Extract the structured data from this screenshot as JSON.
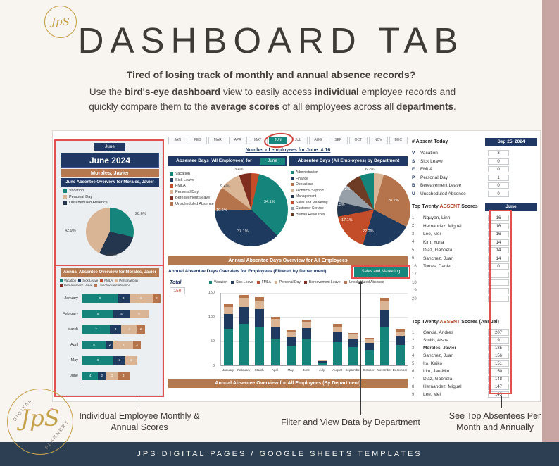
{
  "colors": {
    "navy": "#1f3864",
    "teal": "#17867d",
    "copper": "#b5794f",
    "red": "#e0514f",
    "footer": "#2d4053",
    "strip": "#c8a5a3",
    "gold": "#c5a04a",
    "ink": "#433d37"
  },
  "page": {
    "title": "DASHBOARD TAB",
    "tagline": "Tired of losing track of monthly and annual absence records?",
    "description": [
      {
        "text": "Use the ",
        "bold": false
      },
      {
        "text": "bird's-eye dashboard",
        "bold": true
      },
      {
        "text": " view to easily access ",
        "bold": false
      },
      {
        "text": "individual",
        "bold": true
      },
      {
        "text": " employee records and quickly compare them to the ",
        "bold": false
      },
      {
        "text": "average scores",
        "bold": true
      },
      {
        "text": " of all employees across all ",
        "bold": false
      },
      {
        "text": "departments",
        "bold": true
      },
      {
        "text": ".",
        "bold": false
      }
    ],
    "footer": "JPS DIGITAL PAGES / GOOGLE SHEETS TEMPLATES",
    "logo": {
      "script": "JpS",
      "arc_top": "DIGITAL",
      "arc_bottom": "PLANNERS"
    }
  },
  "annotations": {
    "left": [
      "Individual Employee Monthly &",
      "Annual Scores"
    ],
    "middle": [
      "Filter and View Data by Department"
    ],
    "right": [
      "See Top Absentees Per",
      "Month and Annually"
    ]
  },
  "sheet": {
    "month_tabs": [
      "JAN",
      "FEB",
      "MAR",
      "APR",
      "MAY",
      "JUN",
      "JUL",
      "AUG",
      "SEP",
      "OCT",
      "NOV",
      "DEC"
    ],
    "circled_tab": "JUN",
    "employee_note": "Number of employees for June:  # 16",
    "left_panel": {
      "mini_tab": "June",
      "month_header": "June 2024",
      "employee_name": "Morales, Javier",
      "overview_title": "June Absentee Overview for Morales, Javier",
      "annual_title": "Annual Absentee Overview for Morales, Javier"
    },
    "headers": {
      "all_employees_for": "Absentee Days (All Employees) for",
      "month_chip": "June",
      "by_department": "Absentee Days (All Employees) by Department",
      "annual_all": "Annual Absentee Days Overview for All Employees",
      "filtered": "Annual Absentee Days Overview for Employees (Filtered by Department)",
      "department_chip": "Sales and Marketing",
      "annual_by_dept": "Annual Absentee Overview for All Employees (By Department)",
      "total_label": "Total",
      "total_value": "150"
    },
    "absent_today": {
      "title": "# Absent Today",
      "date": "Sep 25, 2024",
      "rows": [
        {
          "code": "V",
          "label": "Vacation",
          "value": "3"
        },
        {
          "code": "S",
          "label": "Sick Leave",
          "value": "0"
        },
        {
          "code": "F",
          "label": "FMLA",
          "value": "0"
        },
        {
          "code": "P",
          "label": "Personal Day",
          "value": "1"
        },
        {
          "code": "B",
          "label": "Bereavement Leave",
          "value": "0"
        },
        {
          "code": "U",
          "label": "Unscheduled Absence",
          "value": "0"
        }
      ]
    },
    "top_month": {
      "title_pre": "Top Twenty ",
      "title_em": "ABSENT",
      "title_post": " Scores",
      "month_chip": "June",
      "rows": [
        {
          "rank": "1",
          "name": "Nguyen, Linh",
          "score": "16",
          "bold": false
        },
        {
          "rank": "2",
          "name": "Hernandez, Miguel",
          "score": "16",
          "bold": false
        },
        {
          "rank": "3",
          "name": "Lee, Mei",
          "score": "16",
          "bold": false
        },
        {
          "rank": "4",
          "name": "Kim, Yuna",
          "score": "14",
          "bold": false
        },
        {
          "rank": "5",
          "name": "Diaz, Gabriela",
          "score": "14",
          "bold": false
        },
        {
          "rank": "6",
          "name": "Sanchez, Juan",
          "score": "14",
          "bold": false
        },
        {
          "rank": "16",
          "name": "Torres, Daniel",
          "score": "0",
          "bold": false
        },
        {
          "rank": "17",
          "name": "",
          "score": "",
          "bold": false
        },
        {
          "rank": "18",
          "name": "",
          "score": "",
          "bold": false
        },
        {
          "rank": "19",
          "name": "",
          "score": "",
          "bold": false
        },
        {
          "rank": "20",
          "name": "",
          "score": "",
          "bold": false
        }
      ]
    },
    "top_annual": {
      "title_pre": "Top Twenty ",
      "title_em": "ABSENT",
      "title_post": " Scores (Annual)",
      "rows": [
        {
          "rank": "1",
          "name": "Garcia, Andres",
          "score": "207",
          "bold": false
        },
        {
          "rank": "2",
          "name": "Smith, Aisha",
          "score": "191",
          "bold": false
        },
        {
          "rank": "3",
          "name": "Morales, Javier",
          "score": "185",
          "bold": true
        },
        {
          "rank": "4",
          "name": "Sanchez, Juan",
          "score": "156",
          "bold": false
        },
        {
          "rank": "5",
          "name": "Ito, Keiko",
          "score": "151",
          "bold": false
        },
        {
          "rank": "6",
          "name": "Lim, Jae-Min",
          "score": "150",
          "bold": false
        },
        {
          "rank": "7",
          "name": "Diaz, Gabriela",
          "score": "148",
          "bold": false
        },
        {
          "rank": "8",
          "name": "Hernandez, Miguel",
          "score": "147",
          "bold": false
        },
        {
          "rank": "9",
          "name": "Lee, Mei",
          "score": "145",
          "bold": false
        }
      ]
    }
  },
  "palette": {
    "absence_types": [
      {
        "label": "Vacation",
        "color": "#15857b"
      },
      {
        "label": "Sick Leave",
        "color": "#1f3a5f"
      },
      {
        "label": "FMLA",
        "color": "#c44d29"
      },
      {
        "label": "Personal Day",
        "color": "#d9b596"
      },
      {
        "label": "Bereavement Leave",
        "color": "#7e2d1e"
      },
      {
        "label": "Unscheduled Absence",
        "color": "#b5744c"
      }
    ],
    "departments": [
      {
        "label": "Administration",
        "color": "#15857b"
      },
      {
        "label": "Finance",
        "color": "#1f3a5f"
      },
      {
        "label": "Operations",
        "color": "#b5744c"
      },
      {
        "label": "Technical Support",
        "color": "#d9b596"
      },
      {
        "label": "Management",
        "color": "#23364d"
      },
      {
        "label": "Sales and Marketing",
        "color": "#c44d29"
      },
      {
        "label": "Customer Service",
        "color": "#97a0a8"
      },
      {
        "label": "Human Resources",
        "color": "#6e3b24"
      }
    ]
  },
  "chart_data": [
    {
      "id": "employee_month_pie",
      "type": "pie",
      "title": "June Absentee Overview for Morales, Javier",
      "slices": [
        {
          "label": "Vacation",
          "value": 28.6,
          "color": "#15857b"
        },
        {
          "label": "Unscheduled Absence",
          "value": 28.6,
          "color": "#24364e"
        },
        {
          "label": "Personal Day",
          "value": 42.9,
          "color": "#d9b596"
        }
      ],
      "legend": [
        {
          "label": "Vacation",
          "color": "#15857b"
        },
        {
          "label": "Personal Day",
          "color": "#d9b596"
        },
        {
          "label": "Unscheduled Absence",
          "color": "#24364e"
        }
      ],
      "point_labels": [
        {
          "text": "28.6%",
          "x": 112,
          "y": 12,
          "light": false
        },
        {
          "text": "42.9%",
          "x": 12,
          "y": 36,
          "light": false
        },
        {
          "text": "28.6%",
          "x": 70,
          "y": 70,
          "light": false
        }
      ]
    },
    {
      "id": "all_employees_pie",
      "type": "pie",
      "title": "Absentee Days (All Employees) for June",
      "slices": [
        {
          "label": "FMLA",
          "value": 3.4,
          "color": "#c44d29"
        },
        {
          "label": "Vacation",
          "value": 34.1,
          "color": "#15857b"
        },
        {
          "label": "Sick Leave",
          "value": 37.1,
          "color": "#1f3a5f"
        },
        {
          "label": "Unscheduled Absence",
          "value": 10.6,
          "color": "#b5744c"
        },
        {
          "label": "Personal Day",
          "value": 9.4,
          "color": "#d9b596"
        },
        {
          "label": "Bereavement Leave",
          "value": 5.4,
          "color": "#7e2d1e"
        }
      ],
      "point_labels": [
        {
          "text": "3.4%",
          "x": 34,
          "y": 0,
          "light": false
        },
        {
          "text": "34.1%",
          "x": 76,
          "y": 46,
          "light": true
        },
        {
          "text": "37.1%",
          "x": 38,
          "y": 88,
          "light": true
        },
        {
          "text": "10.6%",
          "x": 8,
          "y": 58,
          "light": true
        },
        {
          "text": "9.4%",
          "x": 14,
          "y": 24,
          "light": false
        }
      ]
    },
    {
      "id": "department_pie",
      "type": "pie",
      "title": "Absentee Days (All Employees) by Department",
      "slices": [
        {
          "label": "Technical Support",
          "value": 4.4,
          "color": "#d9b596"
        },
        {
          "label": "Operations",
          "value": 28.2,
          "color": "#b5744c"
        },
        {
          "label": "Finance",
          "value": 22.2,
          "color": "#1f3a5f"
        },
        {
          "label": "Sales and Marketing",
          "value": 17.1,
          "color": "#c44d29"
        },
        {
          "label": "Management",
          "value": 6.5,
          "color": "#23364d"
        },
        {
          "label": "Customer Service",
          "value": 8.2,
          "color": "#97a0a8"
        },
        {
          "label": "Human Resources",
          "value": 7.1,
          "color": "#6e3b24"
        },
        {
          "label": "Administration",
          "value": 6.2,
          "color": "#15857b"
        }
      ],
      "point_labels": [
        {
          "text": "6.2%",
          "x": 46,
          "y": 0,
          "light": false
        },
        {
          "text": "28.2%",
          "x": 78,
          "y": 44,
          "light": true
        },
        {
          "text": "22.2%",
          "x": 42,
          "y": 88,
          "light": true
        },
        {
          "text": "17.1%",
          "x": 12,
          "y": 72,
          "light": true
        },
        {
          "text": "6.5%",
          "x": 4,
          "y": 50,
          "light": true
        },
        {
          "text": "8.2%",
          "x": 12,
          "y": 28,
          "light": true
        }
      ]
    },
    {
      "id": "morales_annual_bars",
      "type": "stacked_bar_horizontal",
      "title": "Annual Absentee Overview for Morales, Javier",
      "categories": [
        "January",
        "February",
        "March",
        "April",
        "May",
        "June"
      ],
      "series": [
        {
          "name": "Vacation",
          "color": "#15857b",
          "values": [
            9,
            8,
            7,
            6,
            8,
            4
          ]
        },
        {
          "name": "Sick Leave",
          "color": "#1f3a5f",
          "values": [
            3,
            4,
            3,
            2,
            3,
            2
          ]
        },
        {
          "name": "Personal Day",
          "color": "#d9b596",
          "values": [
            6,
            5,
            4,
            5,
            3,
            3
          ]
        },
        {
          "name": "Unscheduled Absence",
          "color": "#b5744c",
          "values": [
            2,
            0,
            2,
            2,
            0,
            3
          ]
        }
      ],
      "xmax": 20
    },
    {
      "id": "dept_annual_bars",
      "type": "stacked_bar_vertical",
      "title": "Annual Absentee Days Overview for Employees (Filtered by Department)",
      "filter": "Sales and Marketing",
      "total_label": "Total",
      "total_value": 150,
      "categories": [
        "January",
        "February",
        "March",
        "April",
        "May",
        "June",
        "July",
        "August",
        "September",
        "October",
        "November",
        "December"
      ],
      "series": [
        {
          "name": "Vacation",
          "color": "#15857b",
          "values": [
            75,
            85,
            80,
            55,
            40,
            55,
            5,
            48,
            38,
            32,
            80,
            42
          ]
        },
        {
          "name": "Sick Leave",
          "color": "#1f3a5f",
          "values": [
            30,
            35,
            35,
            25,
            18,
            22,
            3,
            20,
            16,
            14,
            34,
            18
          ]
        },
        {
          "name": "Personal Day",
          "color": "#d9b596",
          "values": [
            15,
            18,
            18,
            15,
            10,
            12,
            2,
            12,
            9,
            8,
            17,
            10
          ]
        },
        {
          "name": "Unscheduled Absence",
          "color": "#b5744c",
          "values": [
            5,
            7,
            7,
            5,
            4,
            5,
            0,
            5,
            4,
            3,
            7,
            4
          ]
        }
      ],
      "ylim": [
        0,
        150
      ],
      "yticks": [
        "150",
        "100",
        "50",
        "0"
      ]
    }
  ]
}
